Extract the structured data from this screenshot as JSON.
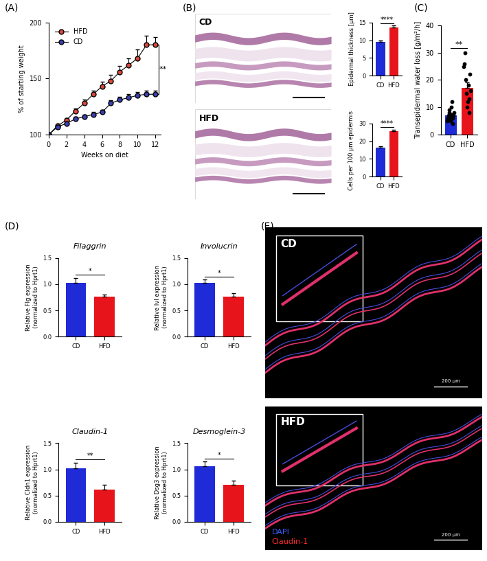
{
  "chart_data": [
    {
      "panel": "(A)",
      "type": "line",
      "x": [
        0,
        1,
        2,
        3,
        4,
        5,
        6,
        7,
        8,
        9,
        10,
        11,
        12
      ],
      "series": [
        {
          "name": "HFD",
          "color": "#d9473a",
          "marker": "o",
          "values": [
            100,
            108,
            113,
            121,
            128,
            136,
            143,
            148,
            156,
            162,
            168,
            180,
            180
          ],
          "errors": [
            0,
            1.5,
            2,
            2.5,
            3,
            3.5,
            4,
            5,
            5,
            6,
            8,
            8,
            7
          ]
        },
        {
          "name": "CD",
          "color": "#3b3fb0",
          "marker": "o",
          "values": [
            100,
            107,
            110,
            114,
            116,
            118,
            120,
            128,
            131,
            133,
            135,
            136,
            136
          ],
          "errors": [
            0,
            1,
            1.5,
            2,
            2,
            2,
            2,
            2.5,
            3,
            3,
            3,
            3,
            3
          ]
        }
      ],
      "xlabel": "Weeks on diet",
      "ylabel": "% of starting weight",
      "xlim": [
        0,
        12.6
      ],
      "ylim": [
        100,
        200
      ],
      "xticks": [
        0,
        2,
        4,
        6,
        8,
        10,
        12
      ],
      "yticks": [
        100,
        150,
        200
      ],
      "legend": "upper left",
      "significance": "**"
    },
    {
      "panel": "(B)",
      "type": "bar",
      "categories": [
        "CD",
        "HFD"
      ],
      "values": [
        9.6,
        13.6
      ],
      "errors": [
        0.4,
        0.6
      ],
      "colors": [
        "#1f2bd6",
        "#e8141b"
      ],
      "ylabel": "Epidermal thickness [µm]",
      "ylim": [
        0,
        15
      ],
      "yticks": [
        0,
        5,
        10,
        15
      ],
      "significance": "****"
    },
    {
      "type": "bar",
      "categories": [
        "CD",
        "HFD"
      ],
      "values": [
        16.5,
        25.5
      ],
      "errors": [
        0.8,
        1.1
      ],
      "colors": [
        "#1f2bd6",
        "#e8141b"
      ],
      "ylabel": "Cells per 100 µm epidermis",
      "ylim": [
        0,
        30
      ],
      "yticks": [
        0,
        10,
        20,
        30
      ],
      "significance": "****"
    },
    {
      "panel": "(C)",
      "type": "bar",
      "categories": [
        "CD",
        "HFD"
      ],
      "values": [
        7,
        17
      ],
      "errors": [
        0.8,
        2.2
      ],
      "colors": [
        "#1f2bd6",
        "#e8141b"
      ],
      "points": [
        [
          5,
          6,
          7,
          8,
          9,
          6,
          5,
          7,
          10,
          12,
          4,
          6,
          7,
          8
        ],
        [
          25,
          26,
          30,
          20,
          15,
          10,
          12,
          18,
          13,
          8,
          22,
          16
        ]
      ],
      "ylabel": "Transepidermal water loss [g/m²/h]",
      "ylim": [
        0,
        40
      ],
      "yticks": [
        0,
        10,
        20,
        30,
        40
      ],
      "significance": "**"
    },
    {
      "panel": "(D)",
      "type": "bar",
      "title": "Filaggrin",
      "categories": [
        "CD",
        "HFD"
      ],
      "values": [
        1.02,
        0.76
      ],
      "errors": [
        0.1,
        0.04
      ],
      "colors": [
        "#1f2bd6",
        "#e8141b"
      ],
      "ylabel": "Relative Flg expression\n(normalized to Hprt1)",
      "ylim": [
        0,
        1.5
      ],
      "yticks": [
        {
          "value": 0,
          "label": "0.0"
        },
        0.5,
        {
          "value": 1,
          "label": "1.0"
        },
        1.5
      ],
      "significance": "*"
    },
    {
      "type": "bar",
      "title": "Involucrin",
      "categories": [
        "CD",
        "HFD"
      ],
      "values": [
        1.02,
        0.76
      ],
      "errors": [
        0.07,
        0.07
      ],
      "colors": [
        "#1f2bd6",
        "#e8141b"
      ],
      "ylabel": "Relative Ivl expression\n(normalized to Hprt1)",
      "ylim": [
        0,
        1.5
      ],
      "yticks": [
        {
          "value": 0,
          "label": "0.0"
        },
        0.5,
        {
          "value": 1,
          "label": "1.0"
        },
        1.5
      ],
      "significance": "*"
    },
    {
      "type": "bar",
      "title": "Claudin-1",
      "categories": [
        "CD",
        "HFD"
      ],
      "values": [
        1.02,
        0.62
      ],
      "errors": [
        0.11,
        0.08
      ],
      "colors": [
        "#1f2bd6",
        "#e8141b"
      ],
      "ylabel": "Relative Cldn1 expression\n(normalized to Hprt1)",
      "ylim": [
        0,
        1.5
      ],
      "yticks": [
        {
          "value": 0,
          "label": "0.0"
        },
        0.5,
        {
          "value": 1,
          "label": "1.0"
        },
        1.5
      ],
      "significance": "**"
    },
    {
      "type": "bar",
      "title": "Desmoglein-3",
      "categories": [
        "CD",
        "HFD"
      ],
      "values": [
        1.06,
        0.71
      ],
      "errors": [
        0.09,
        0.08
      ],
      "colors": [
        "#1f2bd6",
        "#e8141b"
      ],
      "ylabel": "Relative Dsg3 expression\n(normalized to Hprt1)",
      "ylim": [
        0,
        1.5
      ],
      "yticks": [
        {
          "value": 0,
          "label": "0.0"
        },
        0.5,
        {
          "value": 1,
          "label": "1.0"
        },
        1.5
      ],
      "significance": "*"
    }
  ],
  "images": [
    {
      "panel": "(B)",
      "tiles": [
        {
          "label": "CD"
        },
        {
          "label": "HFD"
        }
      ]
    },
    {
      "panel": "(E)",
      "tiles": [
        {
          "label": "CD",
          "scale_bar": "200 µm"
        },
        {
          "label": "HFD",
          "scale_bar": "200 µm"
        }
      ],
      "legend": [
        {
          "name": "Claudin-1",
          "color": "#ff2a2a"
        },
        {
          "name": "DAPI",
          "color": "#3a5cff"
        }
      ]
    }
  ]
}
